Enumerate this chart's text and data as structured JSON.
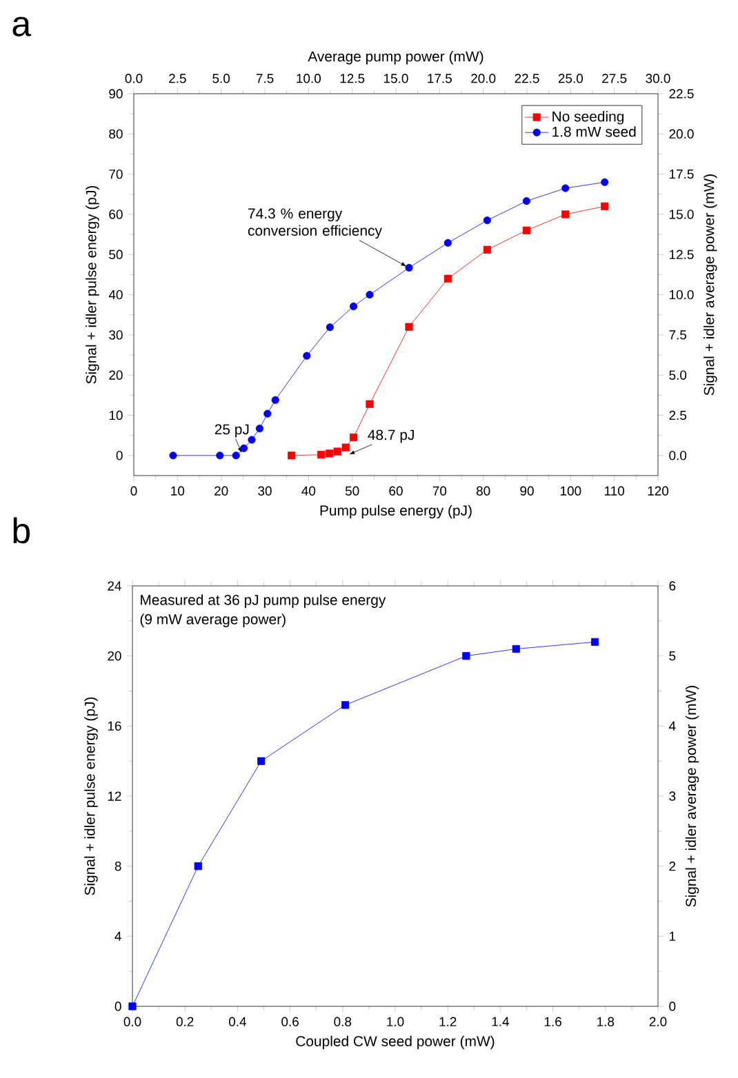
{
  "chart_data": [
    {
      "type": "line",
      "title": "a",
      "xlabel": "Pump pulse energy (pJ)",
      "ylabel": "Signal + idler pulse energy (pJ)",
      "x2label": "Average pump power (mW)",
      "y2label": "Signal + idler average power (mW)",
      "xlim": [
        0,
        120
      ],
      "xticks": [
        0,
        10,
        20,
        30,
        40,
        50,
        60,
        70,
        80,
        90,
        100,
        110,
        120
      ],
      "ylim": [
        -5,
        90
      ],
      "yticks": [
        0,
        10,
        20,
        30,
        40,
        50,
        60,
        70,
        80,
        90
      ],
      "x2lim": [
        0,
        30
      ],
      "x2ticks": [
        {
          "value": 0,
          "label": "0.0"
        },
        {
          "value": 2.5,
          "label": "2.5"
        },
        {
          "value": 5,
          "label": "5.0"
        },
        {
          "value": 7.5,
          "label": "7.5"
        },
        {
          "value": 10,
          "label": "10.0"
        },
        {
          "value": 12.5,
          "label": "12.5"
        },
        {
          "value": 15,
          "label": "15.0"
        },
        {
          "value": 17.5,
          "label": "17.5"
        },
        {
          "value": 20,
          "label": "20.0"
        },
        {
          "value": 22.5,
          "label": "22.5"
        },
        {
          "value": 25,
          "label": "25.0"
        },
        {
          "value": 27.5,
          "label": "27.5"
        },
        {
          "value": 30,
          "label": "30.0"
        }
      ],
      "y2lim": [
        -1.25,
        22.5
      ],
      "y2ticks": [
        {
          "value": 0,
          "label": "0.0"
        },
        {
          "value": 2.5,
          "label": "2.5"
        },
        {
          "value": 5,
          "label": "5.0"
        },
        {
          "value": 7.5,
          "label": "7.5"
        },
        {
          "value": 10,
          "label": "10.0"
        },
        {
          "value": 12.5,
          "label": "12.5"
        },
        {
          "value": 15,
          "label": "15.0"
        },
        {
          "value": 17.5,
          "label": "17.5"
        },
        {
          "value": 20,
          "label": "20.0"
        },
        {
          "value": 22.5,
          "label": "22.5"
        }
      ],
      "legend": "top right",
      "grid": false,
      "series": [
        {
          "name": "No seeding",
          "color": "#ff0000",
          "marker": "square",
          "x": [
            36.1,
            42.9,
            44.8,
            46.6,
            48.5,
            50.3,
            54,
            63,
            71.9,
            80.9,
            89.9,
            98.8,
            107.8
          ],
          "values": [
            0,
            0.2,
            0.5,
            1,
            2,
            4.5,
            12.8,
            32,
            44,
            51.2,
            56,
            60,
            62
          ]
        },
        {
          "name": "1.8 mW seed",
          "color": "#0000ff",
          "marker": "circle",
          "x": [
            9,
            19.7,
            23.4,
            25.2,
            27,
            28.8,
            30.6,
            32.4,
            39.6,
            44.9,
            50.3,
            54,
            63,
            71.9,
            80.9,
            89.9,
            98.8,
            107.8
          ],
          "values": [
            0,
            0,
            0,
            1.8,
            3.9,
            6.7,
            10.4,
            13.8,
            24.8,
            31.9,
            37.1,
            40,
            46.7,
            52.9,
            58.5,
            63.3,
            66.5,
            68
          ]
        }
      ],
      "annotations": [
        {
          "text": "25 pJ",
          "x": 25,
          "y": 0
        },
        {
          "text": "48.7 pJ",
          "x": 48.7,
          "y": 0
        },
        {
          "text": "74.3 % energy conversion efficiency",
          "x": 63,
          "y": 46.7
        }
      ]
    },
    {
      "type": "line",
      "title": "b",
      "xlabel": "Coupled CW seed power (mW)",
      "ylabel": "Signal + idler pulse energy (pJ)",
      "y2label": "Signal + idler average power (mW)",
      "xlim": [
        0,
        2
      ],
      "xticks": [
        {
          "value": 0,
          "label": "0.0"
        },
        {
          "value": 0.2,
          "label": "0.2"
        },
        {
          "value": 0.4,
          "label": "0.4"
        },
        {
          "value": 0.6,
          "label": "0.6"
        },
        {
          "value": 0.8,
          "label": "0.8"
        },
        {
          "value": 1,
          "label": "1.0"
        },
        {
          "value": 1.2,
          "label": "1.2"
        },
        {
          "value": 1.4,
          "label": "1.4"
        },
        {
          "value": 1.6,
          "label": "1.6"
        },
        {
          "value": 1.8,
          "label": "1.8"
        },
        {
          "value": 2,
          "label": "2.0"
        }
      ],
      "ylim": [
        0,
        24
      ],
      "yticks": [
        0,
        4,
        8,
        12,
        16,
        20,
        24
      ],
      "y2lim": [
        0,
        6
      ],
      "y2ticks": [
        0,
        1,
        2,
        3,
        4,
        5,
        6
      ],
      "legend": false,
      "grid": false,
      "series": [
        {
          "color": "#0000ff",
          "marker": "square",
          "x": [
            0,
            0.25,
            0.49,
            0.81,
            1.27,
            1.46,
            1.76
          ],
          "values": [
            0,
            8,
            14,
            17.2,
            20,
            20.4,
            20.8
          ]
        }
      ],
      "annotations": [
        "Measured at 36 pJ pump pulse energy",
        "(9 mW average power)"
      ]
    }
  ]
}
